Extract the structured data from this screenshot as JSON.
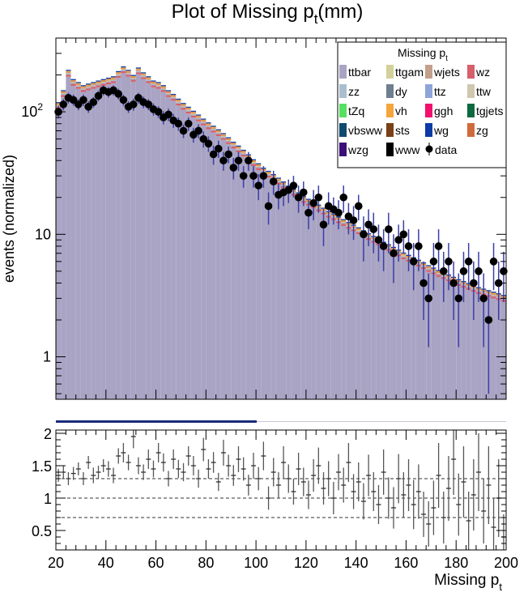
{
  "chart_data": [
    {
      "type": "bar",
      "subtype": "stacked-histogram-with-data-points",
      "title": "Plot of Missing p",
      "title_sub": "t",
      "title_suffix": "(mm)",
      "ylabel": "events (normalized)",
      "yscale": "log",
      "ylim": [
        0.45,
        400
      ],
      "xlim": [
        20,
        200
      ],
      "yticks": [
        {
          "v": 1,
          "label": "1"
        },
        {
          "v": 10,
          "label": "10"
        },
        {
          "v": 100,
          "label": "10",
          "sup": "2"
        }
      ],
      "legend": {
        "title": "Missing p",
        "title_sub": "t",
        "placement": "top-right",
        "entries": [
          {
            "name": "ttbar",
            "color": "#a9a4c4"
          },
          {
            "name": "ttgam",
            "color": "#d4d09a"
          },
          {
            "name": "wjets",
            "color": "#c4a08c"
          },
          {
            "name": "wz",
            "color": "#d65f6b"
          },
          {
            "name": "zz",
            "color": "#a9bfcf"
          },
          {
            "name": "dy",
            "color": "#6e7f8f"
          },
          {
            "name": "ttz",
            "color": "#8ea5d9"
          },
          {
            "name": "ttw",
            "color": "#cfc8ae"
          },
          {
            "name": "tZq",
            "color": "#55e061"
          },
          {
            "name": "vh",
            "color": "#f5a53b"
          },
          {
            "name": "ggh",
            "color": "#f2106d"
          },
          {
            "name": "tgjets",
            "color": "#0b6a3f"
          },
          {
            "name": "vbsww",
            "color": "#0d4a6e"
          },
          {
            "name": "sts",
            "color": "#7a4016"
          },
          {
            "name": "wg",
            "color": "#0c3ba6"
          },
          {
            "name": "zg",
            "color": "#d06a3c"
          },
          {
            "name": "wzg",
            "color": "#3a1078"
          },
          {
            "name": "www",
            "color": "#000000"
          },
          {
            "name": "data",
            "color": "#000000",
            "marker": true
          }
        ]
      },
      "bin_width": 2,
      "mc_total": [
        [
          22,
          120
        ],
        [
          24,
          150
        ],
        [
          26,
          220
        ],
        [
          28,
          185
        ],
        [
          30,
          175
        ],
        [
          32,
          165
        ],
        [
          34,
          170
        ],
        [
          36,
          175
        ],
        [
          38,
          180
        ],
        [
          40,
          185
        ],
        [
          42,
          190
        ],
        [
          44,
          195
        ],
        [
          46,
          215
        ],
        [
          48,
          235
        ],
        [
          50,
          220
        ],
        [
          52,
          200
        ],
        [
          54,
          230
        ],
        [
          56,
          210
        ],
        [
          58,
          195
        ],
        [
          60,
          180
        ],
        [
          62,
          175
        ],
        [
          64,
          165
        ],
        [
          66,
          150
        ],
        [
          68,
          140
        ],
        [
          70,
          128
        ],
        [
          72,
          118
        ],
        [
          74,
          110
        ],
        [
          76,
          102
        ],
        [
          78,
          95
        ],
        [
          80,
          88
        ],
        [
          82,
          82
        ],
        [
          84,
          77
        ],
        [
          86,
          72
        ],
        [
          88,
          67
        ],
        [
          90,
          62
        ],
        [
          92,
          57
        ],
        [
          94,
          53
        ],
        [
          96,
          49
        ],
        [
          98,
          45
        ],
        [
          100,
          41
        ],
        [
          102,
          38
        ],
        [
          104,
          35
        ],
        [
          106,
          33
        ],
        [
          108,
          31
        ],
        [
          110,
          29
        ],
        [
          112,
          27
        ],
        [
          114,
          25
        ],
        [
          116,
          23.5
        ],
        [
          118,
          22
        ],
        [
          120,
          20.5
        ],
        [
          122,
          19.5
        ],
        [
          124,
          18.5
        ],
        [
          126,
          17.5
        ],
        [
          128,
          16.5
        ],
        [
          130,
          15.5
        ],
        [
          132,
          14.8
        ],
        [
          134,
          14
        ],
        [
          136,
          13.3
        ],
        [
          138,
          12.6
        ],
        [
          140,
          12
        ],
        [
          142,
          11.4
        ],
        [
          144,
          10.8
        ],
        [
          146,
          10.2
        ],
        [
          148,
          9.7
        ],
        [
          150,
          9.2
        ],
        [
          152,
          8.7
        ],
        [
          154,
          8.3
        ],
        [
          156,
          7.9
        ],
        [
          158,
          7.5
        ],
        [
          160,
          7.1
        ],
        [
          162,
          6.8
        ],
        [
          164,
          6.5
        ],
        [
          166,
          6.2
        ],
        [
          168,
          5.9
        ],
        [
          170,
          5.6
        ],
        [
          172,
          5.35
        ],
        [
          174,
          5.1
        ],
        [
          176,
          4.9
        ],
        [
          178,
          4.7
        ],
        [
          180,
          4.5
        ],
        [
          182,
          4.3
        ],
        [
          184,
          4.15
        ],
        [
          186,
          4
        ],
        [
          188,
          3.85
        ],
        [
          190,
          3.7
        ],
        [
          192,
          3.6
        ],
        [
          194,
          3.5
        ],
        [
          196,
          3.4
        ],
        [
          198,
          3.3
        ],
        [
          200,
          3.2
        ]
      ],
      "mc_ttbar_fraction": 0.88,
      "data": [
        [
          21,
          100,
          12
        ],
        [
          23,
          115,
          12
        ],
        [
          25,
          130,
          13
        ],
        [
          27,
          125,
          13
        ],
        [
          29,
          115,
          12
        ],
        [
          31,
          125,
          13
        ],
        [
          33,
          110,
          12
        ],
        [
          35,
          120,
          12
        ],
        [
          37,
          135,
          13
        ],
        [
          39,
          150,
          14
        ],
        [
          41,
          145,
          14
        ],
        [
          43,
          150,
          14
        ],
        [
          45,
          140,
          14
        ],
        [
          47,
          125,
          13
        ],
        [
          49,
          110,
          12
        ],
        [
          51,
          115,
          13
        ],
        [
          53,
          130,
          13
        ],
        [
          55,
          120,
          13
        ],
        [
          57,
          115,
          12
        ],
        [
          59,
          105,
          12
        ],
        [
          61,
          100,
          11
        ],
        [
          63,
          90,
          11
        ],
        [
          65,
          95,
          11
        ],
        [
          67,
          85,
          11
        ],
        [
          69,
          80,
          10
        ],
        [
          71,
          70,
          9
        ],
        [
          73,
          80,
          10
        ],
        [
          75,
          65,
          9
        ],
        [
          77,
          70,
          9
        ],
        [
          79,
          60,
          9
        ],
        [
          81,
          55,
          8
        ],
        [
          83,
          45,
          8
        ],
        [
          85,
          50,
          8
        ],
        [
          87,
          40,
          7
        ],
        [
          89,
          45,
          7
        ],
        [
          91,
          35,
          7
        ],
        [
          93,
          40,
          7
        ],
        [
          95,
          30,
          6
        ],
        [
          97,
          40,
          7
        ],
        [
          99,
          30,
          6
        ],
        [
          101,
          25,
          6
        ],
        [
          103,
          30,
          6
        ],
        [
          105,
          17,
          5
        ],
        [
          107,
          27,
          6
        ],
        [
          109,
          21,
          5
        ],
        [
          111,
          22,
          5
        ],
        [
          113,
          23,
          5
        ],
        [
          115,
          25,
          5
        ],
        [
          117,
          20,
          5
        ],
        [
          119,
          22,
          5
        ],
        [
          121,
          15,
          4
        ],
        [
          123,
          18,
          5
        ],
        [
          125,
          20,
          5
        ],
        [
          127,
          12,
          4
        ],
        [
          129,
          17,
          5
        ],
        [
          131,
          16,
          4
        ],
        [
          133,
          15,
          4
        ],
        [
          135,
          20,
          5
        ],
        [
          137,
          14,
          4
        ],
        [
          139,
          13,
          4
        ],
        [
          141,
          17,
          4
        ],
        [
          143,
          10,
          4
        ],
        [
          145,
          12,
          4
        ],
        [
          147,
          11,
          4
        ],
        [
          149,
          9,
          3
        ],
        [
          151,
          8,
          3
        ],
        [
          153,
          11,
          4
        ],
        [
          155,
          7,
          3
        ],
        [
          157,
          9,
          3
        ],
        [
          159,
          10,
          3
        ],
        [
          161,
          8,
          3
        ],
        [
          163,
          6,
          2.5
        ],
        [
          165,
          8,
          3
        ],
        [
          167,
          4,
          2
        ],
        [
          169,
          3,
          1.8
        ],
        [
          171,
          6,
          2.5
        ],
        [
          173,
          8,
          3
        ],
        [
          175,
          5,
          2.2
        ],
        [
          177,
          6,
          2.5
        ],
        [
          179,
          4,
          2
        ],
        [
          181,
          3,
          1.8
        ],
        [
          183,
          5,
          2.2
        ],
        [
          185,
          6,
          2.5
        ],
        [
          187,
          4,
          2
        ],
        [
          189,
          5,
          2.2
        ],
        [
          191,
          3,
          1.8
        ],
        [
          193,
          2,
          1.5
        ],
        [
          195,
          6,
          2.5
        ],
        [
          197,
          4,
          2
        ],
        [
          199,
          5,
          2.2
        ]
      ]
    },
    {
      "type": "scatter",
      "subtype": "ratio-panel",
      "xlabel": "Missing p",
      "xlabel_sub": "t",
      "xlim": [
        20,
        200
      ],
      "ylim": [
        0.2,
        2.05
      ],
      "xticks": [
        20,
        40,
        60,
        80,
        100,
        120,
        140,
        160,
        180,
        200
      ],
      "yticks": [
        {
          "v": 0.5,
          "label": "0.5"
        },
        {
          "v": 1,
          "label": "1"
        },
        {
          "v": 1.5,
          "label": "1.5"
        },
        {
          "v": 2,
          "label": "2"
        }
      ],
      "reference_lines": [
        0.7,
        1,
        1.3
      ],
      "points": [
        [
          21,
          1.35,
          0.1
        ],
        [
          23,
          1.4,
          0.1
        ],
        [
          25,
          1.3,
          0.1
        ],
        [
          27,
          1.38,
          0.1
        ],
        [
          29,
          1.45,
          0.1
        ],
        [
          31,
          1.3,
          0.1
        ],
        [
          33,
          1.55,
          0.1
        ],
        [
          35,
          1.35,
          0.12
        ],
        [
          37,
          1.4,
          0.1
        ],
        [
          39,
          1.5,
          0.1
        ],
        [
          41,
          1.45,
          0.12
        ],
        [
          43,
          1.35,
          0.12
        ],
        [
          45,
          1.65,
          0.12
        ],
        [
          47,
          1.7,
          0.15
        ],
        [
          49,
          1.55,
          0.12
        ],
        [
          51,
          1.95,
          0.18
        ],
        [
          53,
          1.5,
          0.13
        ],
        [
          55,
          1.4,
          0.12
        ],
        [
          57,
          1.6,
          0.15
        ],
        [
          59,
          1.45,
          0.13
        ],
        [
          61,
          1.7,
          0.15
        ],
        [
          63,
          1.55,
          0.14
        ],
        [
          65,
          1.3,
          0.12
        ],
        [
          67,
          1.6,
          0.15
        ],
        [
          69,
          1.45,
          0.14
        ],
        [
          71,
          1.4,
          0.14
        ],
        [
          73,
          1.65,
          0.15
        ],
        [
          75,
          1.5,
          0.15
        ],
        [
          77,
          1.3,
          0.14
        ],
        [
          79,
          1.75,
          0.18
        ],
        [
          81,
          1.45,
          0.15
        ],
        [
          83,
          1.55,
          0.16
        ],
        [
          85,
          1.25,
          0.14
        ],
        [
          87,
          1.7,
          0.2
        ],
        [
          89,
          1.5,
          0.17
        ],
        [
          91,
          1.35,
          0.16
        ],
        [
          93,
          1.6,
          0.2
        ],
        [
          95,
          1.45,
          0.18
        ],
        [
          97,
          1.2,
          0.16
        ],
        [
          99,
          1.5,
          0.2
        ],
        [
          101,
          1.3,
          0.18
        ],
        [
          103,
          1.65,
          0.22
        ],
        [
          105,
          1.0,
          0.18
        ],
        [
          107,
          1.4,
          0.22
        ],
        [
          109,
          1.2,
          0.2
        ],
        [
          111,
          1.55,
          0.25
        ],
        [
          113,
          1.3,
          0.22
        ],
        [
          115,
          1.1,
          0.2
        ],
        [
          117,
          1.45,
          0.25
        ],
        [
          119,
          1.25,
          0.22
        ],
        [
          121,
          1.05,
          0.22
        ],
        [
          123,
          1.35,
          0.25
        ],
        [
          125,
          1.5,
          0.28
        ],
        [
          127,
          1.15,
          0.25
        ],
        [
          129,
          1.3,
          0.27
        ],
        [
          131,
          1.0,
          0.25
        ],
        [
          133,
          1.4,
          0.28
        ],
        [
          135,
          1.2,
          0.27
        ],
        [
          137,
          1.55,
          0.3
        ],
        [
          139,
          1.1,
          0.27
        ],
        [
          141,
          1.25,
          0.3
        ],
        [
          143,
          0.95,
          0.28
        ],
        [
          145,
          1.35,
          0.32
        ],
        [
          147,
          1.1,
          0.3
        ],
        [
          149,
          0.9,
          0.3
        ],
        [
          151,
          1.4,
          0.35
        ],
        [
          153,
          1.0,
          0.32
        ],
        [
          155,
          0.85,
          0.32
        ],
        [
          157,
          1.3,
          0.38
        ],
        [
          159,
          1.05,
          0.35
        ],
        [
          161,
          1.2,
          0.4
        ],
        [
          163,
          0.9,
          0.38
        ],
        [
          165,
          1.1,
          0.42
        ],
        [
          167,
          0.75,
          0.35
        ],
        [
          169,
          0.6,
          0.35
        ],
        [
          171,
          0.85,
          0.42
        ],
        [
          173,
          1.35,
          0.5
        ],
        [
          175,
          0.7,
          0.4
        ],
        [
          177,
          1.15,
          0.5
        ],
        [
          179,
          1.6,
          0.55
        ],
        [
          181,
          0.9,
          0.48
        ],
        [
          183,
          1.25,
          0.55
        ],
        [
          185,
          0.65,
          0.45
        ],
        [
          187,
          1.05,
          0.55
        ],
        [
          189,
          1.4,
          0.6
        ],
        [
          191,
          0.8,
          0.5
        ],
        [
          193,
          1.2,
          0.6
        ],
        [
          195,
          0.55,
          0.45
        ],
        [
          197,
          1.0,
          0.6
        ],
        [
          199,
          0.4,
          0.35
        ]
      ]
    }
  ]
}
